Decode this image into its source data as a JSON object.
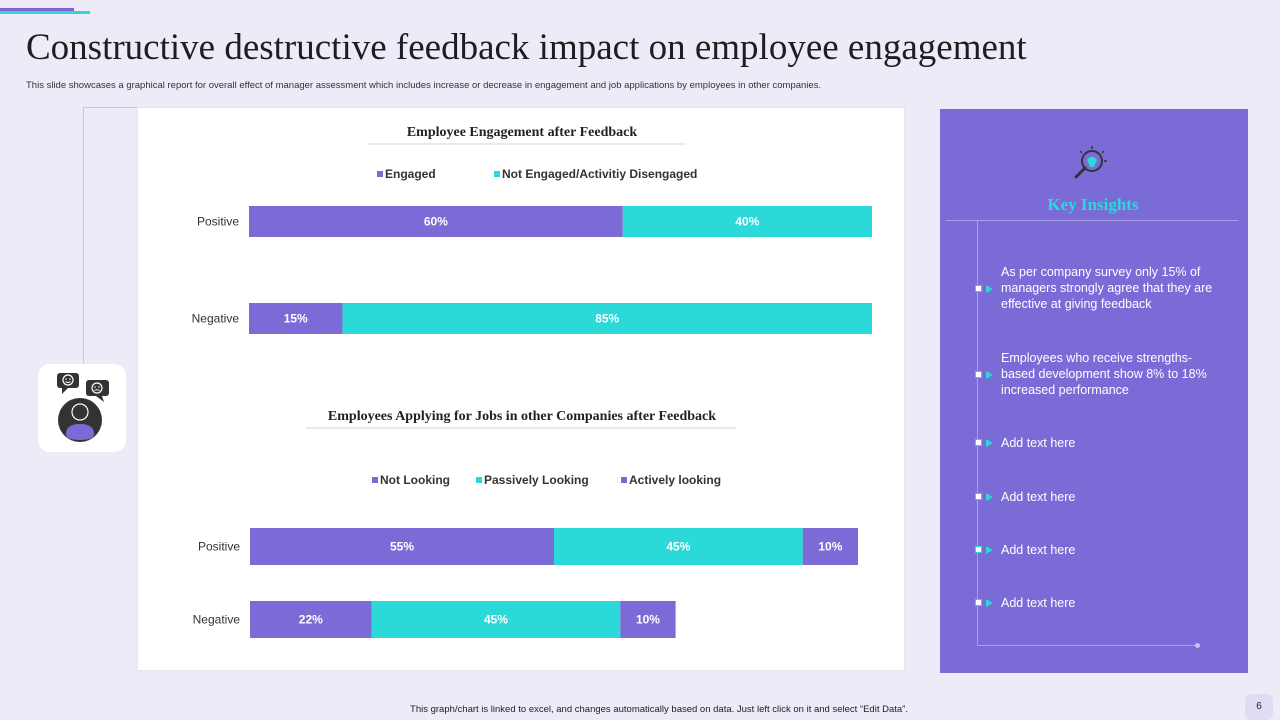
{
  "title": "Constructive destructive feedback impact on employee engagement",
  "subtitle": "This slide showcases a graphical report for overall effect of manager assessment which includes increase or decrease in engagement and job applications by employees in other companies.",
  "footer": "This graph/chart is linked to excel, and changes automatically based on data. Just left click on it and select “Edit Data”.",
  "page_number": "6",
  "colors": {
    "primary": "#7b6bd6",
    "accent": "#2bd9d9",
    "background": "#eeeaf8"
  },
  "icons": {
    "insights_icon": "lightbulb-magnifier-icon",
    "avatar_icon": "person-with-speech-bubbles-icon"
  },
  "chart_data": [
    {
      "type": "bar",
      "orientation": "horizontal",
      "stacked": true,
      "title": "Employee Engagement after Feedback",
      "categories": [
        "Positive",
        "Negative"
      ],
      "series": [
        {
          "name": "Engaged",
          "color": "#7b6bd6",
          "values": [
            60,
            15
          ]
        },
        {
          "name": "Not Engaged/Activitiy Disengaged",
          "color": "#2bd9d9",
          "values": [
            40,
            85
          ]
        }
      ],
      "unit": "%",
      "legend": "top-center"
    },
    {
      "type": "bar",
      "orientation": "horizontal",
      "stacked": true,
      "title": "Employees Applying for Jobs in other Companies after Feedback",
      "categories": [
        "Positive",
        "Negative"
      ],
      "series": [
        {
          "name": "Not Looking",
          "color": "#7b6bd6",
          "values": [
            55,
            22
          ]
        },
        {
          "name": "Passively Looking",
          "color": "#2bd9d9",
          "values": [
            45,
            45
          ]
        },
        {
          "name": "Actively looking",
          "color": "#7b6bd6",
          "values": [
            10,
            10
          ]
        }
      ],
      "unit": "%",
      "legend": "top-center"
    }
  ],
  "insights": {
    "title": "Key Insights",
    "items": [
      {
        "text": "As per company survey only 15% of managers strongly agree that they are effective at giving feedback"
      },
      {
        "text": "Employees who receive strengths-based development show 8% to 18% increased performance"
      },
      {
        "text": "Add text here"
      },
      {
        "text": "Add text here"
      },
      {
        "text": "Add text here"
      },
      {
        "text": "Add text here"
      }
    ]
  }
}
